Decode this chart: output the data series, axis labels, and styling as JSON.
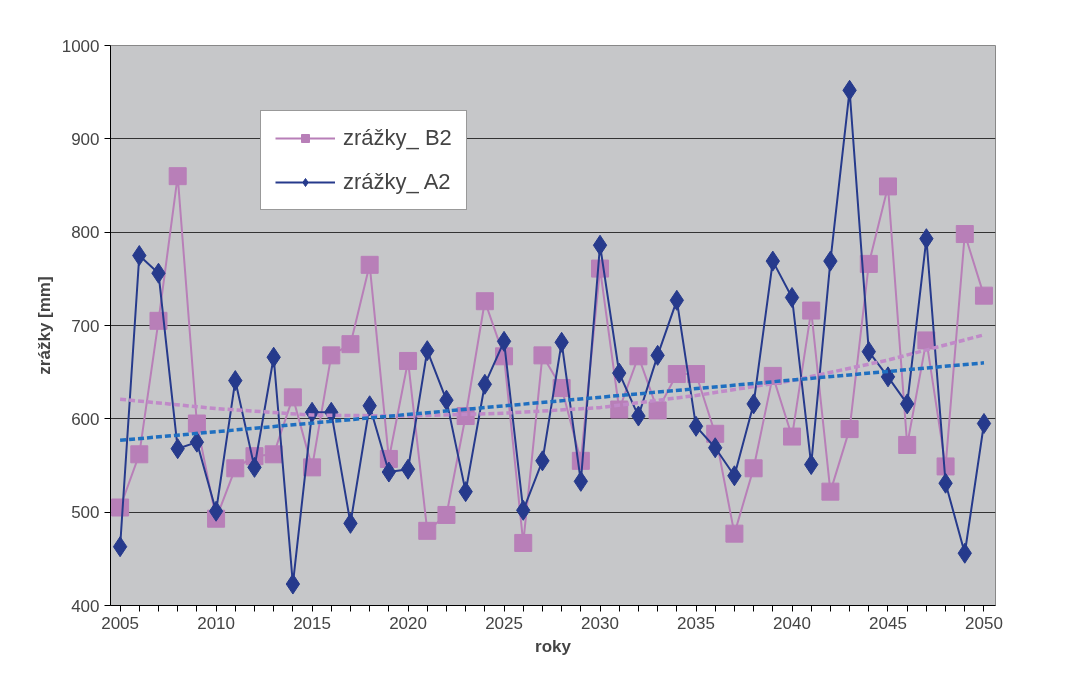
{
  "chart_data": {
    "type": "line",
    "xlabel": "roky",
    "ylabel": "zrážky [mm]",
    "x": [
      2005,
      2006,
      2007,
      2008,
      2009,
      2010,
      2011,
      2012,
      2013,
      2014,
      2015,
      2016,
      2017,
      2018,
      2019,
      2020,
      2021,
      2022,
      2023,
      2024,
      2025,
      2026,
      2027,
      2028,
      2029,
      2030,
      2031,
      2032,
      2033,
      2034,
      2035,
      2036,
      2037,
      2038,
      2039,
      2040,
      2041,
      2042,
      2043,
      2044,
      2045,
      2046,
      2047,
      2048,
      2049,
      2050
    ],
    "series": [
      {
        "name": "zrážky_ B2",
        "color": "#b87fb8",
        "marker": "square",
        "values": [
          505,
          562,
          705,
          860,
          595,
          493,
          547,
          560,
          562,
          623,
          548,
          668,
          680,
          765,
          557,
          662,
          480,
          497,
          603,
          726,
          667,
          467,
          668,
          633,
          555,
          761,
          610,
          667,
          609,
          648,
          648,
          584,
          477,
          547,
          646,
          581,
          716,
          522,
          589,
          766,
          849,
          572,
          684,
          549,
          798,
          732
        ]
      },
      {
        "name": "zrážky_ A2",
        "color": "#263a8c",
        "marker": "diamond",
        "values": [
          463,
          775,
          756,
          568,
          575,
          501,
          641,
          548,
          666,
          423,
          607,
          607,
          488,
          614,
          543,
          546,
          673,
          620,
          522,
          637,
          683,
          502,
          555,
          682,
          533,
          786,
          649,
          603,
          668,
          727,
          592,
          569,
          539,
          616,
          769,
          730,
          551,
          769,
          952,
          672,
          645,
          616,
          793,
          531,
          456,
          595
        ]
      },
      {
        "color": "#c08ac8",
        "marker": "none",
        "line_style": "dashed",
        "x": [
          2005,
          2010,
          2015,
          2020,
          2025,
          2030,
          2035,
          2040,
          2045,
          2050
        ],
        "values": [
          621,
          611,
          604,
          603,
          606,
          612,
          625,
          641,
          663,
          690
        ]
      },
      {
        "color": "#1f6fc0",
        "marker": "none",
        "line_style": "dashed",
        "x": [
          2005,
          2050
        ],
        "values": [
          577,
          660
        ]
      }
    ],
    "xlim": [
      2004.5,
      2050.6
    ],
    "ylim": [
      400,
      1000
    ],
    "xticks": [
      2005,
      {
        "value": 2006,
        "label": null
      },
      {
        "value": 2007,
        "label": null
      },
      {
        "value": 2008,
        "label": null
      },
      {
        "value": 2009,
        "label": null
      },
      2010,
      {
        "value": 2011,
        "label": null
      },
      {
        "value": 2012,
        "label": null
      },
      {
        "value": 2013,
        "label": null
      },
      {
        "value": 2014,
        "label": null
      },
      2015,
      {
        "value": 2016,
        "label": null
      },
      {
        "value": 2017,
        "label": null
      },
      {
        "value": 2018,
        "label": null
      },
      {
        "value": 2019,
        "label": null
      },
      2020,
      {
        "value": 2021,
        "label": null
      },
      {
        "value": 2022,
        "label": null
      },
      {
        "value": 2023,
        "label": null
      },
      {
        "value": 2024,
        "label": null
      },
      2025,
      {
        "value": 2026,
        "label": null
      },
      {
        "value": 2027,
        "label": null
      },
      {
        "value": 2028,
        "label": null
      },
      {
        "value": 2029,
        "label": null
      },
      2030,
      {
        "value": 2031,
        "label": null
      },
      {
        "value": 2032,
        "label": null
      },
      {
        "value": 2033,
        "label": null
      },
      {
        "value": 2034,
        "label": null
      },
      2035,
      {
        "value": 2036,
        "label": null
      },
      {
        "value": 2037,
        "label": null
      },
      {
        "value": 2038,
        "label": null
      },
      {
        "value": 2039,
        "label": null
      },
      2040,
      {
        "value": 2041,
        "label": null
      },
      {
        "value": 2042,
        "label": null
      },
      {
        "value": 2043,
        "label": null
      },
      {
        "value": 2044,
        "label": null
      },
      2045,
      {
        "value": 2046,
        "label": null
      },
      {
        "value": 2047,
        "label": null
      },
      {
        "value": 2048,
        "label": null
      },
      {
        "value": 2049,
        "label": null
      },
      2050
    ],
    "yticks": [
      400,
      500,
      600,
      700,
      800,
      900,
      1000
    ],
    "grid": "y",
    "legend": "top left"
  }
}
